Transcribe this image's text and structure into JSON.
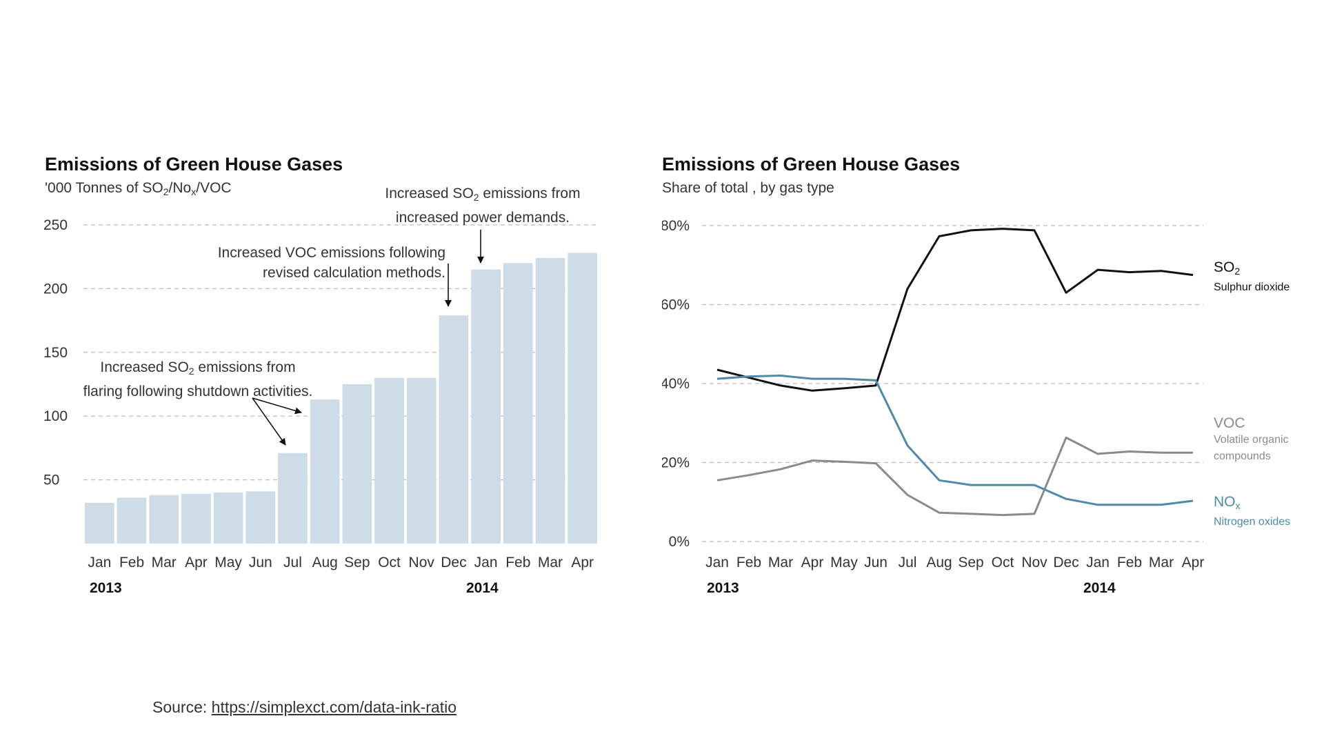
{
  "chart_data": [
    {
      "type": "bar",
      "title": "Emissions of Green House Gases",
      "subtitle": {
        "pre": "'000 Tonnes of SO",
        "sub1": "2",
        "mid": "/No",
        "sub2": "x",
        "post": "/VOC"
      },
      "categories": [
        "Jan",
        "Feb",
        "Mar",
        "Apr",
        "May",
        "Jun",
        "Jul",
        "Aug",
        "Sep",
        "Oct",
        "Nov",
        "Dec",
        "Jan",
        "Feb",
        "Mar",
        "Apr"
      ],
      "years": [
        "2013",
        "2014"
      ],
      "values": [
        32,
        36,
        38,
        39,
        40,
        41,
        71,
        113,
        125,
        130,
        130,
        179,
        215,
        220,
        224,
        228
      ],
      "ylim": [
        0,
        250
      ],
      "yticks": [
        50,
        100,
        150,
        200,
        250
      ],
      "grid": true,
      "bar_color": "#cddce7",
      "annotations": [
        {
          "pre": "Increased SO",
          "sub": "2",
          "post": " emissions from",
          "line2": "flaring following shutdown activities."
        },
        {
          "line1": "Increased VOC emissions following",
          "line2": "revised calculation methods."
        },
        {
          "pre": "Increased SO",
          "sub": "2",
          "post": " emissions from",
          "line2": "increased power demands."
        }
      ]
    },
    {
      "type": "line",
      "title": "Emissions of Green House Gases",
      "subtitle": "Share of total , by gas type",
      "categories": [
        "Jan",
        "Feb",
        "Mar",
        "Apr",
        "May",
        "Jun",
        "Jul",
        "Aug",
        "Sep",
        "Oct",
        "Nov",
        "Dec",
        "Jan",
        "Feb",
        "Mar",
        "Apr"
      ],
      "years": [
        "2013",
        "2014"
      ],
      "ylim": [
        0,
        80
      ],
      "yticks": [
        "0%",
        "20%",
        "40%",
        "60%",
        "80%"
      ],
      "grid": true,
      "series": [
        {
          "key": "so2",
          "color": "#111111",
          "values": [
            43.5,
            41.5,
            39.5,
            38.2,
            38.8,
            39.5,
            64,
            77.3,
            78.8,
            79.2,
            78.8,
            63,
            68.8,
            68.2,
            68.5,
            67.5
          ]
        },
        {
          "key": "voc",
          "color": "#8a8a8a",
          "values": [
            15.5,
            16.8,
            18.3,
            20.5,
            20.2,
            19.8,
            11.8,
            7.3,
            7.0,
            6.7,
            7.0,
            26.3,
            22.2,
            22.8,
            22.5,
            22.5
          ]
        },
        {
          "key": "nox",
          "color": "#4e8aa8",
          "values": [
            41.2,
            41.8,
            42.0,
            41.2,
            41.2,
            40.8,
            24.3,
            15.5,
            14.3,
            14.3,
            14.3,
            10.8,
            9.3,
            9.3,
            9.3,
            10.3
          ]
        }
      ],
      "labels": {
        "so2": {
          "name": "SO",
          "sub": "2",
          "desc": "Sulphur dioxide"
        },
        "voc": {
          "name": "VOC",
          "desc1": "Volatile organic",
          "desc2": "compounds"
        },
        "nox": {
          "name": "NO",
          "sub": "x",
          "desc": "Nitrogen oxides"
        }
      }
    }
  ],
  "footer": {
    "source_label": "Source:",
    "source_url": "https://simplexct.com/data-ink-ratio"
  }
}
